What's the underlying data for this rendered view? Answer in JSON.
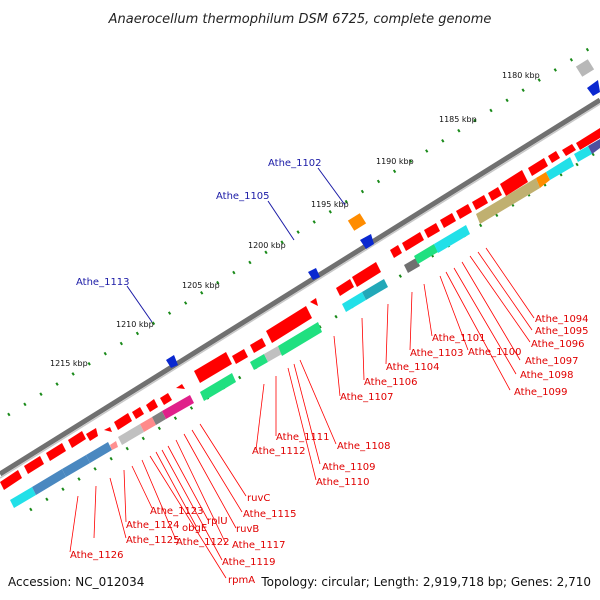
{
  "title": "Anaerocellum thermophilum DSM 6725, complete genome",
  "footer": {
    "accession": "Accession: NC_012034",
    "summary": "Topology: circular; Length: 2,919,718 bp; Genes: 2,710"
  },
  "kbp_ticks": [
    "1180 kbp",
    "1185 kbp",
    "1190 kbp",
    "1195 kbp",
    "1200 kbp",
    "1205 kbp",
    "1210 kbp",
    "1215 kbp"
  ],
  "colors": {
    "gene_red": "#ff0000",
    "gene_blue": "#0a28d0",
    "gene_orange": "#ff8c00",
    "cog_cyan": "#22e0e8",
    "cog_green": "#20e080",
    "cog_steelblue": "#4a88c0",
    "cog_olive": "#c0b070",
    "cog_magenta": "#e0208a",
    "cog_gray": "#9a9a9a",
    "backbone": "#808080",
    "dot_green": "#1a8a1a",
    "label_red": "#e00000",
    "label_blue": "#1a1aa6"
  },
  "blue_labels": [
    "Athe_1102",
    "Athe_1105",
    "Athe_1113"
  ],
  "red_labels": [
    "Athe_1094",
    "Athe_1095",
    "Athe_1096",
    "Athe_1097",
    "Athe_1098",
    "Athe_1099",
    "Athe_1100",
    "Athe_1101",
    "Athe_1103",
    "Athe_1104",
    "Athe_1106",
    "Athe_1107",
    "Athe_1108",
    "Athe_1109",
    "Athe_1110",
    "Athe_1111",
    "Athe_1112",
    "ruvC",
    "Athe_1115",
    "ruvB",
    "Athe_1117",
    "rplU",
    "Athe_1119",
    "obgE",
    "rpmA",
    "Athe_1122",
    "Athe_1123",
    "Athe_1124",
    "Athe_1125",
    "Athe_1126"
  ]
}
